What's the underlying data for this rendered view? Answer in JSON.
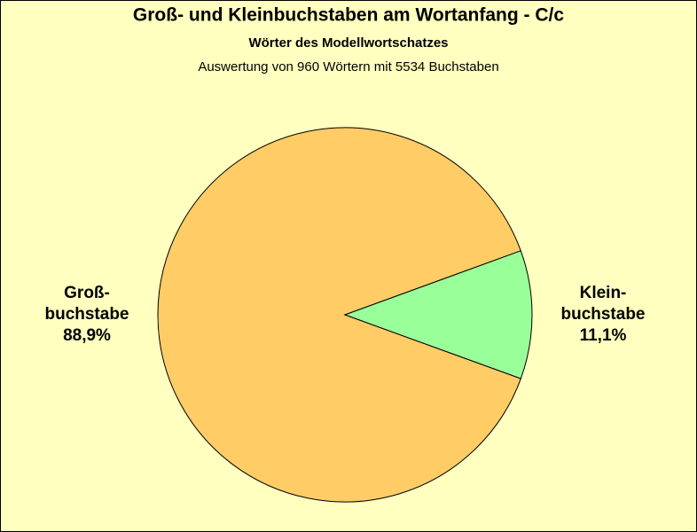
{
  "chart_data": {
    "type": "pie",
    "title": "Groß- und Kleinbuchstaben am Wortanfang - C/c",
    "subtitle": "Wörter des Modellwortschatzes",
    "annotation": "Auswertung von 960 Wörtern mit 5534 Buchstaben",
    "categories": [
      "Groß-buchstabe",
      "Klein-buchstabe"
    ],
    "values": [
      88.9,
      11.1
    ],
    "value_labels": [
      "88,9%",
      "11,1%"
    ],
    "colors": [
      "#ffcc66",
      "#99ff99"
    ]
  }
}
